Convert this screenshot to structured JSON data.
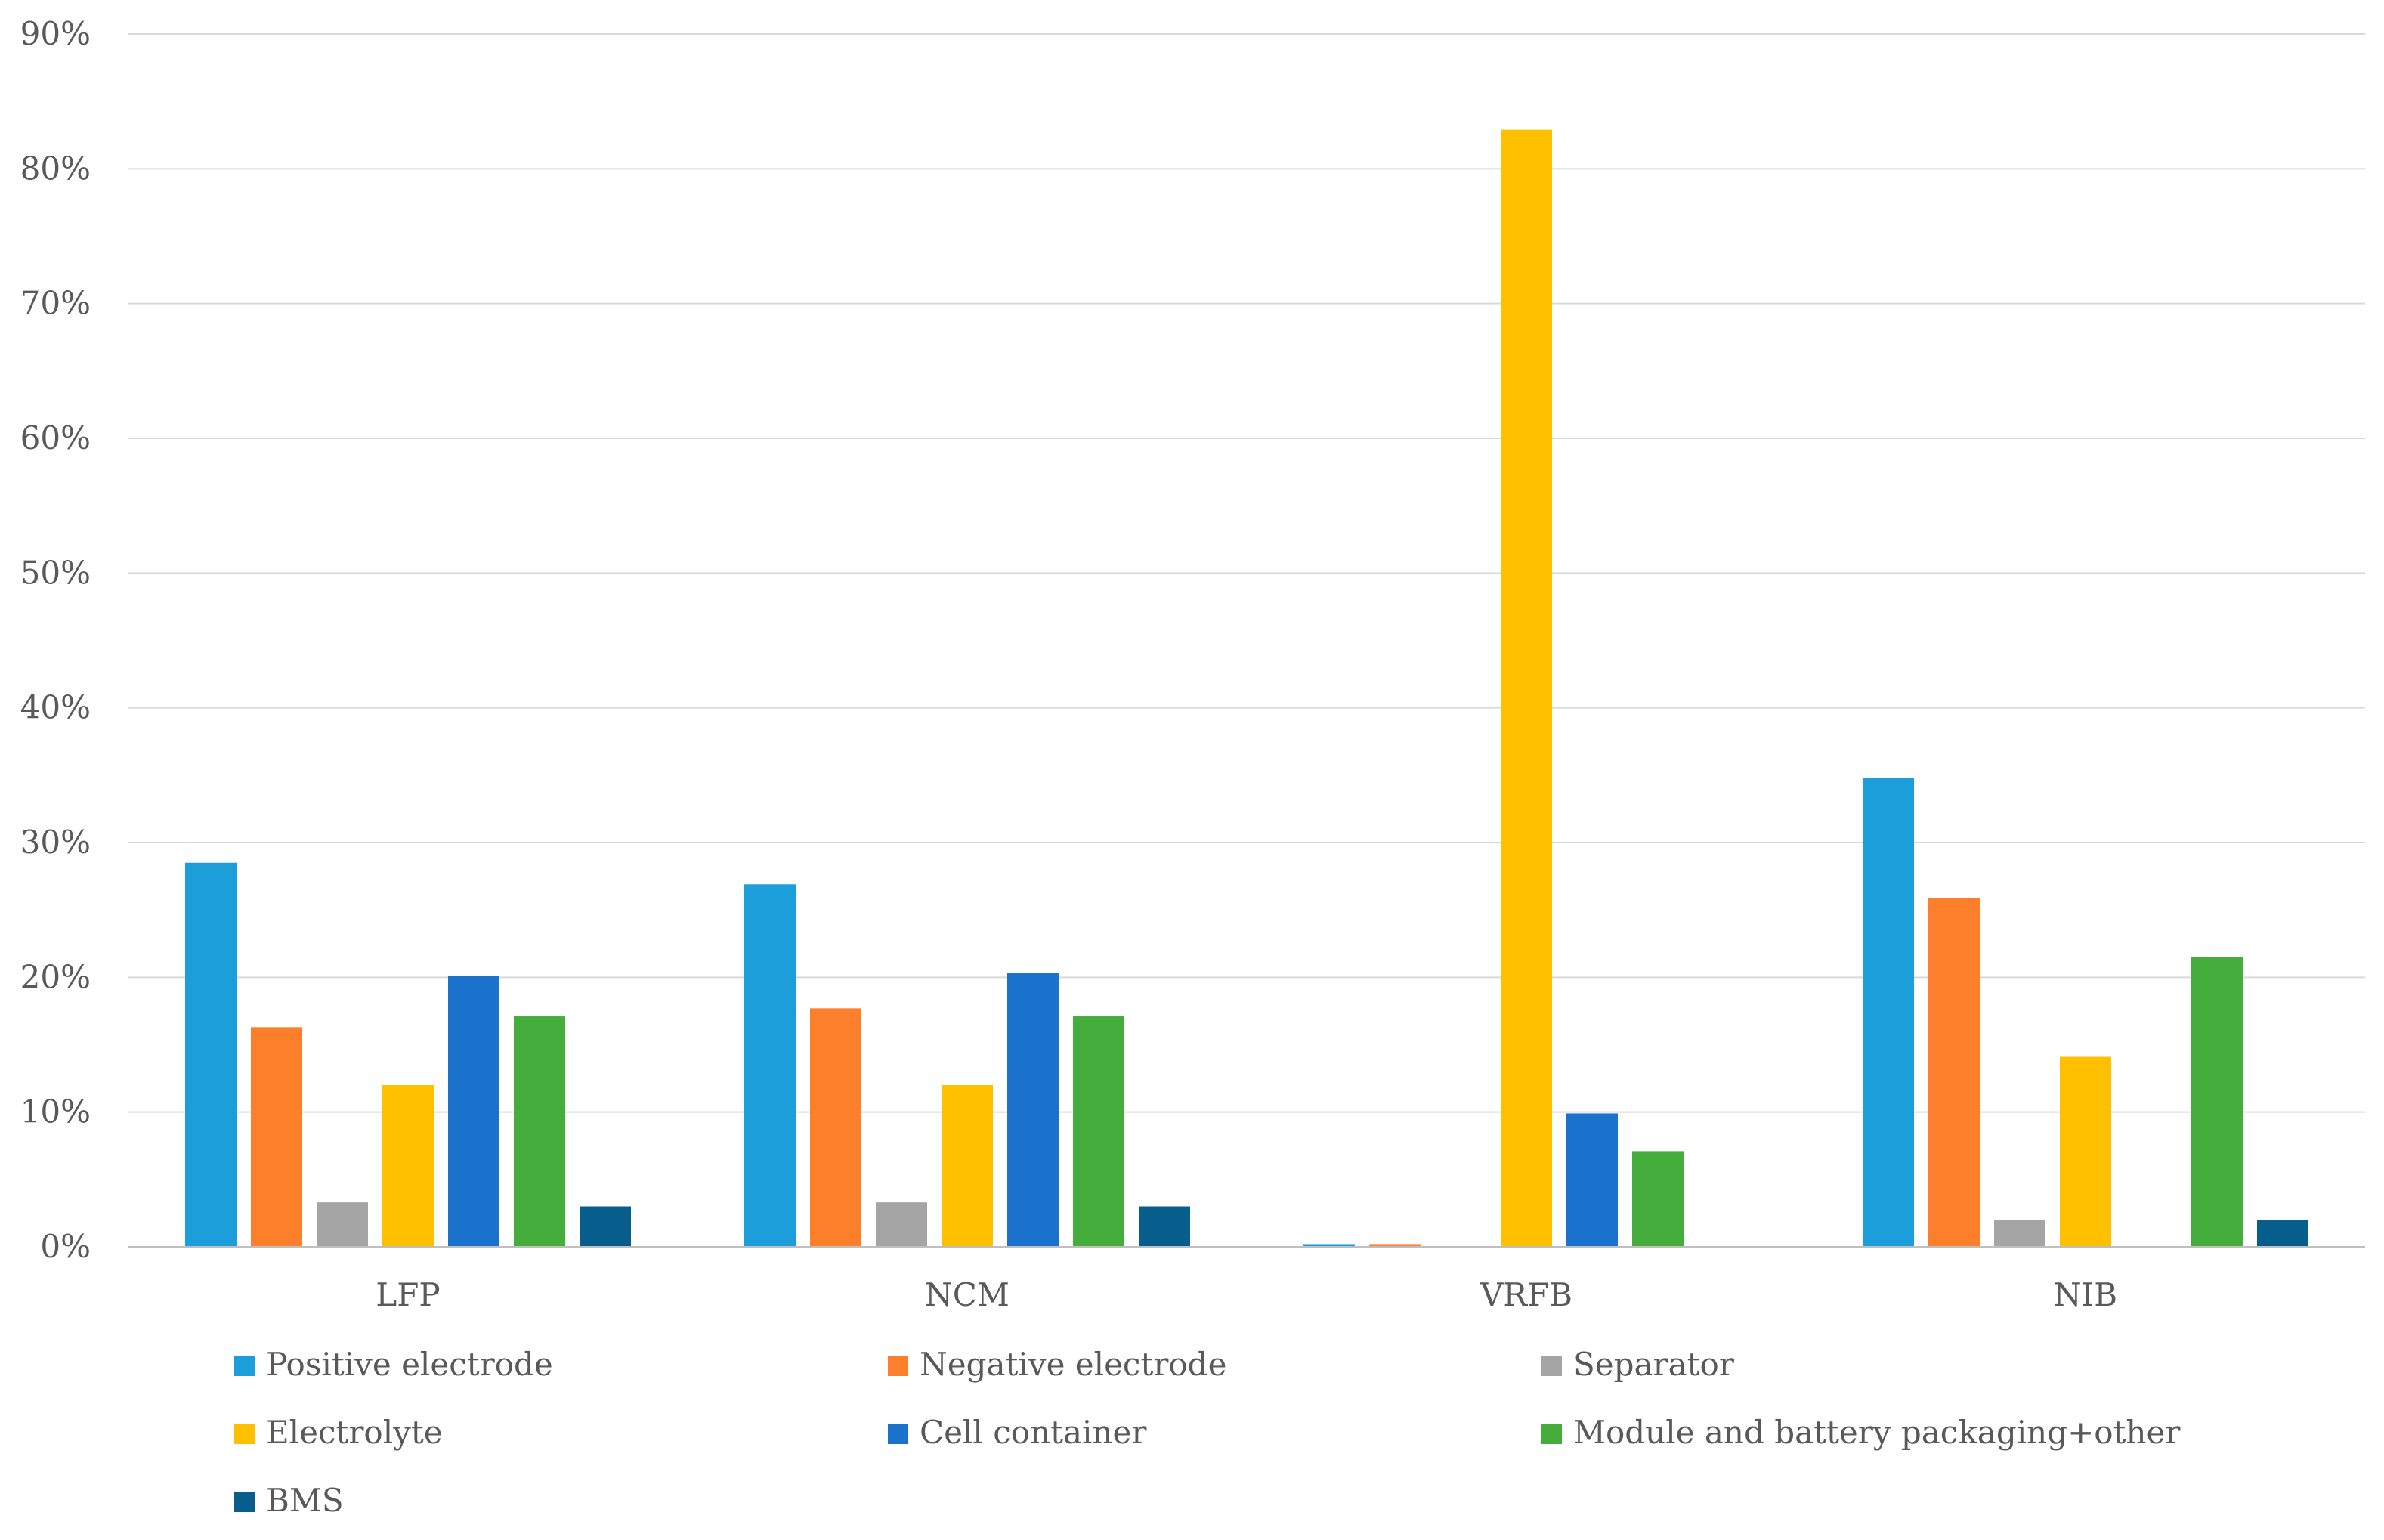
{
  "chart_data": {
    "type": "bar",
    "title": "",
    "xlabel": "",
    "ylabel": "",
    "ylim": [
      0,
      90
    ],
    "yticks": [
      0,
      10,
      20,
      30,
      40,
      50,
      60,
      70,
      80,
      90
    ],
    "y_tick_labels": [
      "0%",
      "10%",
      "20%",
      "30%",
      "40%",
      "50%",
      "60%",
      "70%",
      "80%",
      "90%"
    ],
    "grid": true,
    "legend_position": "bottom",
    "categories": [
      "LFP",
      "NCM",
      "VRFB",
      "NIB"
    ],
    "series": [
      {
        "name": "Positive electrode",
        "color": "#1b9ed9",
        "values": [
          28.5,
          26.9,
          0.2,
          34.8
        ]
      },
      {
        "name": "Negative electrode",
        "color": "#fd7f2b",
        "values": [
          16.3,
          17.7,
          0.2,
          25.9
        ]
      },
      {
        "name": "Separator",
        "color": "#a5a5a5",
        "values": [
          3.3,
          3.3,
          0,
          2.0
        ]
      },
      {
        "name": "Electrolyte",
        "color": "#ffc000",
        "values": [
          12.0,
          12.0,
          82.9,
          14.1
        ]
      },
      {
        "name": "Cell container",
        "color": "#1b72cc",
        "values": [
          20.1,
          20.3,
          9.9,
          0
        ]
      },
      {
        "name": "Module and battery packaging+other",
        "color": "#45ad3c",
        "values": [
          17.1,
          17.1,
          7.1,
          21.5
        ]
      },
      {
        "name": "BMS",
        "color": "#075d8c",
        "values": [
          3.0,
          3.0,
          0,
          2.0
        ]
      }
    ]
  }
}
